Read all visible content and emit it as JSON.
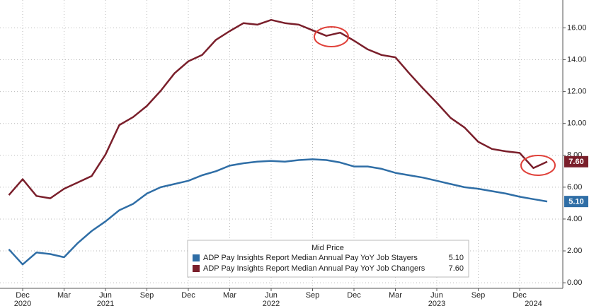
{
  "chart_data": {
    "type": "line",
    "categories": [
      null,
      "Dec",
      null,
      null,
      "Mar",
      null,
      null,
      "Jun",
      null,
      null,
      "Sep",
      null,
      null,
      "Dec",
      null,
      null,
      "Mar",
      null,
      null,
      "Jun",
      null,
      null,
      "Sep",
      null,
      null,
      "Dec",
      null,
      null,
      "Mar",
      null,
      null,
      "Jun",
      null,
      null,
      "Sep",
      null,
      null,
      "Dec",
      null,
      null
    ],
    "years": [
      null,
      "2020",
      null,
      null,
      null,
      null,
      null,
      "2021",
      null,
      null,
      null,
      null,
      null,
      null,
      null,
      null,
      null,
      null,
      null,
      "2022",
      null,
      null,
      null,
      null,
      null,
      null,
      null,
      null,
      null,
      null,
      null,
      "2023",
      null,
      null,
      null,
      null,
      null,
      null,
      "2024",
      null
    ],
    "series": [
      {
        "name": "ADP Pay Insights Report Median Annual Pay YoY Job Stayers",
        "color": "#2f6ea6",
        "last_value_label": "5.10",
        "values": [
          2.1,
          1.15,
          1.9,
          1.8,
          1.6,
          2.5,
          3.25,
          3.85,
          4.55,
          4.95,
          5.6,
          6.0,
          6.2,
          6.4,
          6.75,
          7.0,
          7.35,
          7.5,
          7.6,
          7.65,
          7.6,
          7.7,
          7.75,
          7.7,
          7.55,
          7.3,
          7.3,
          7.15,
          6.9,
          6.75,
          6.6,
          6.4,
          6.2,
          6.0,
          5.9,
          5.75,
          5.6,
          5.4,
          5.25,
          5.1
        ]
      },
      {
        "name": "ADP Pay Insights Report Median Annual Pay YoY Job Changers",
        "color": "#7a1f2b",
        "last_value_label": "7.60",
        "values": [
          5.5,
          6.5,
          5.45,
          5.3,
          5.9,
          6.3,
          6.7,
          8.05,
          9.9,
          10.4,
          11.1,
          12.05,
          13.15,
          13.9,
          14.3,
          15.25,
          15.8,
          16.3,
          16.2,
          16.5,
          16.3,
          16.2,
          15.85,
          15.5,
          15.7,
          15.2,
          14.65,
          14.3,
          14.15,
          13.15,
          12.2,
          11.3,
          10.35,
          9.75,
          8.85,
          8.4,
          8.25,
          8.15,
          7.2,
          7.6
        ]
      }
    ],
    "legend_title": "Mid Price",
    "ylim": [
      -0.35,
      17.75
    ],
    "yticks": [
      {
        "value": 0,
        "label": "0.00"
      },
      {
        "value": 2,
        "label": "2.00"
      },
      {
        "value": 4,
        "label": "4.00"
      },
      {
        "value": 6,
        "label": "6.00"
      },
      {
        "value": 8,
        "label": "8.00"
      },
      {
        "value": 10,
        "label": "10.00"
      },
      {
        "value": 12,
        "label": "12.00"
      },
      {
        "value": 14,
        "label": "14.00"
      },
      {
        "value": 16,
        "label": "16.00"
      }
    ],
    "grid": true
  }
}
